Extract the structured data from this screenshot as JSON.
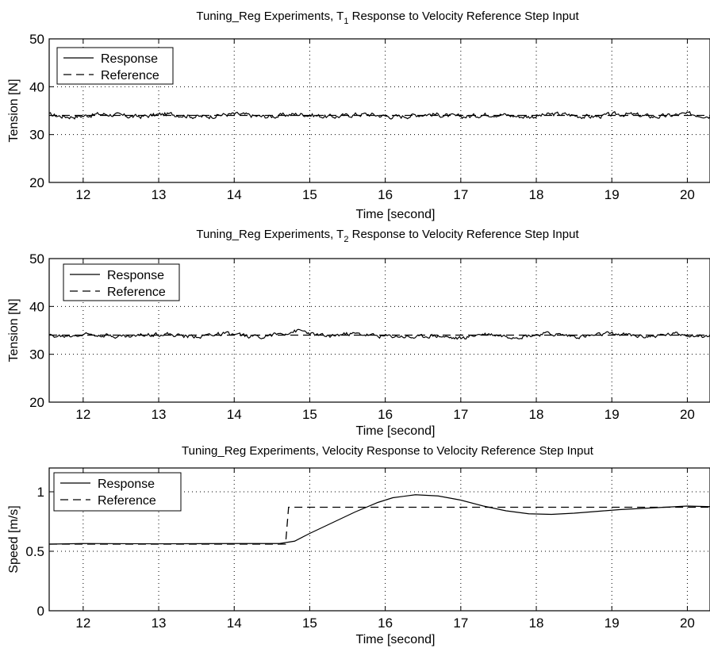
{
  "chart_data": [
    {
      "type": "line",
      "title": "Tuning_Reg Experiments, T₁ Response to Velocity Reference Step Input",
      "title_parts": {
        "before": "Tuning_Reg Experiments, T",
        "subscript": "1",
        "after": " Response to Velocity Reference Step Input"
      },
      "xlabel": "Time [second]",
      "ylabel": "Tension [N]",
      "xlim": [
        11.55,
        20.3
      ],
      "ylim": [
        20,
        50
      ],
      "xticks": [
        12,
        13,
        14,
        15,
        16,
        17,
        18,
        19,
        20
      ],
      "yticks": [
        20,
        30,
        40,
        50
      ],
      "grid": true,
      "legend_position": "top-left",
      "series": [
        {
          "name": "Response",
          "style": "solid",
          "generator": "noisy",
          "base": 34.0,
          "amp": 0.45
        },
        {
          "name": "Reference",
          "style": "dashed",
          "points": [
            [
              11.55,
              34
            ],
            [
              20.3,
              34
            ]
          ]
        }
      ]
    },
    {
      "type": "line",
      "title": "Tuning_Reg Experiments, T₂ Response to Velocity Reference Step Input",
      "title_parts": {
        "before": "Tuning_Reg Experiments, T",
        "subscript": "2",
        "after": " Response to Velocity Reference Step Input"
      },
      "xlabel": "Time [second]",
      "ylabel": "Tension [N]",
      "xlim": [
        11.55,
        20.3
      ],
      "ylim": [
        20,
        50
      ],
      "xticks": [
        12,
        13,
        14,
        15,
        16,
        17,
        18,
        19,
        20
      ],
      "yticks": [
        20,
        30,
        40,
        50
      ],
      "grid": true,
      "legend_position": "top-left",
      "series": [
        {
          "name": "Response",
          "style": "solid",
          "generator": "noisy",
          "base": 34.0,
          "amp": 0.4,
          "bumps": [
            [
              14.9,
              0.8
            ],
            [
              16.4,
              -0.7
            ],
            [
              17.0,
              -0.5
            ]
          ]
        },
        {
          "name": "Reference",
          "style": "dashed",
          "points": [
            [
              11.55,
              34
            ],
            [
              20.3,
              34
            ]
          ]
        }
      ]
    },
    {
      "type": "line",
      "title": "Tuning_Reg Experiments, Velocity Response to Velocity Reference Step Input",
      "title_parts": {
        "before": "Tuning_Reg Experiments, Velocity Response to Velocity Reference Step Input",
        "subscript": "",
        "after": ""
      },
      "xlabel": "Time [second]",
      "ylabel": "Speed [m/s]",
      "xlim": [
        11.55,
        20.3
      ],
      "ylim": [
        0,
        1.2
      ],
      "xticks": [
        12,
        13,
        14,
        15,
        16,
        17,
        18,
        19,
        20
      ],
      "yticks": [
        0,
        0.5,
        1
      ],
      "grid": true,
      "legend_position": "top-left",
      "series": [
        {
          "name": "Response",
          "style": "solid",
          "points": [
            [
              11.55,
              0.56
            ],
            [
              12,
              0.565
            ],
            [
              13,
              0.563
            ],
            [
              14,
              0.565
            ],
            [
              14.6,
              0.565
            ],
            [
              14.8,
              0.585
            ],
            [
              15.0,
              0.65
            ],
            [
              15.3,
              0.74
            ],
            [
              15.6,
              0.83
            ],
            [
              15.9,
              0.91
            ],
            [
              16.1,
              0.95
            ],
            [
              16.4,
              0.975
            ],
            [
              16.7,
              0.965
            ],
            [
              17.0,
              0.93
            ],
            [
              17.3,
              0.88
            ],
            [
              17.6,
              0.84
            ],
            [
              17.9,
              0.815
            ],
            [
              18.2,
              0.81
            ],
            [
              18.5,
              0.82
            ],
            [
              18.8,
              0.835
            ],
            [
              19.1,
              0.85
            ],
            [
              19.4,
              0.86
            ],
            [
              19.7,
              0.87
            ],
            [
              20.0,
              0.88
            ],
            [
              20.3,
              0.875
            ]
          ]
        },
        {
          "name": "Reference",
          "style": "dashed",
          "points": [
            [
              11.55,
              0.56
            ],
            [
              14.68,
              0.56
            ],
            [
              14.72,
              0.87
            ],
            [
              20.3,
              0.87
            ]
          ]
        }
      ]
    }
  ]
}
